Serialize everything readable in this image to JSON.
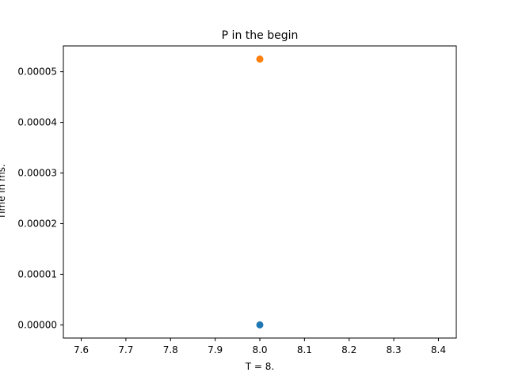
{
  "chart_data": {
    "type": "scatter",
    "title": "P in the begin",
    "xlabel": "T = 8.",
    "ylabel": "Time in ms.",
    "xlim": [
      7.56,
      8.44
    ],
    "ylim": [
      -2.6e-06,
      5.51e-05
    ],
    "xticks": [
      7.6,
      7.7,
      7.8,
      7.9,
      8.0,
      8.1,
      8.2,
      8.3,
      8.4
    ],
    "xtick_labels": [
      "7.6",
      "7.7",
      "7.8",
      "7.9",
      "8.0",
      "8.1",
      "8.2",
      "8.3",
      "8.4"
    ],
    "yticks": [
      0,
      1e-05,
      2e-05,
      3e-05,
      4e-05,
      5e-05
    ],
    "ytick_labels": [
      "0.00000",
      "0.00001",
      "0.00002",
      "0.00003",
      "0.00004",
      "0.00005"
    ],
    "grid": false,
    "series": [
      {
        "points": [
          {
            "x": 8.0,
            "y": 0.0
          }
        ],
        "color": "#1f77b4"
      },
      {
        "points": [
          {
            "x": 8.0,
            "y": 5.25e-05
          }
        ],
        "color": "#ff7f0e"
      }
    ]
  }
}
